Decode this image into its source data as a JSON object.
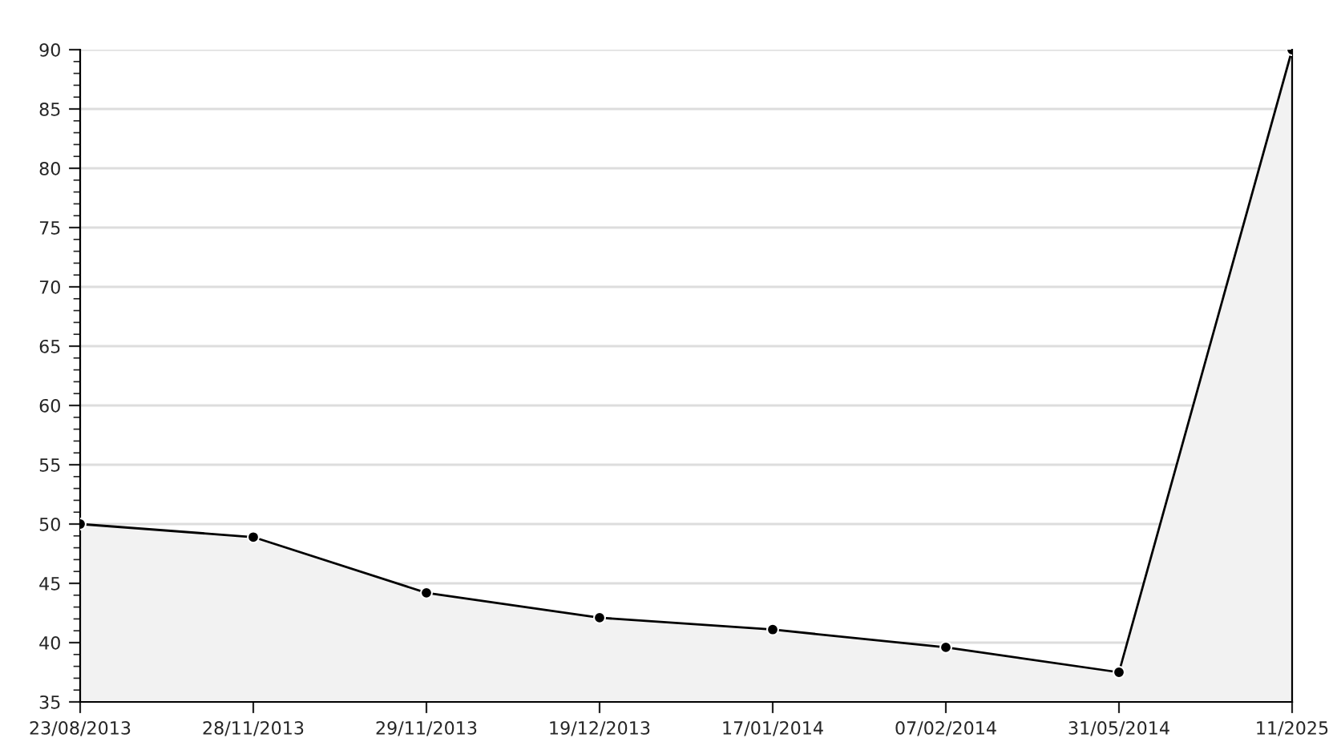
{
  "chart_data": {
    "type": "area",
    "categories": [
      "23/08/2013",
      "28/11/2013",
      "29/11/2013",
      "19/12/2013",
      "17/01/2014",
      "07/02/2014",
      "31/05/2014",
      "11/2025"
    ],
    "series": [
      {
        "color": "#000000",
        "values": [
          50,
          48.9,
          44.2,
          42.1,
          41.1,
          39.6,
          37.5,
          90
        ]
      }
    ],
    "ylim": [
      35,
      90
    ],
    "yticks": [
      35,
      40,
      45,
      50,
      55,
      60,
      65,
      70,
      75,
      80,
      85,
      90
    ],
    "grid": "y",
    "marker": "circle",
    "line_style": "solid",
    "legend": false
  }
}
